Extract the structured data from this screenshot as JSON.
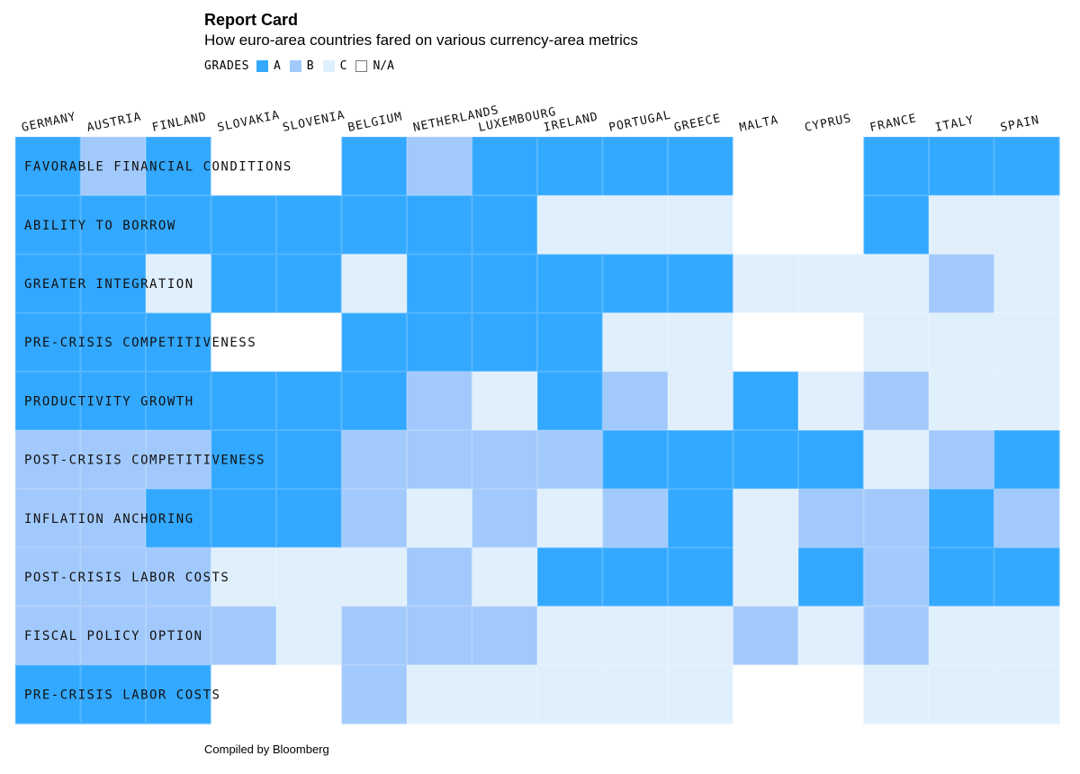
{
  "title": "Report Card",
  "subtitle": "How euro-area countries fared on various currency-area metrics",
  "legend": {
    "label": "GRADES",
    "items": [
      {
        "grade": "A",
        "label": "A",
        "color": "#33a8ff"
      },
      {
        "grade": "B",
        "label": "B",
        "color": "#a2c9fc"
      },
      {
        "grade": "C",
        "label": "C",
        "color": "#e0effc"
      },
      {
        "grade": "N/A",
        "label": "N/A",
        "color": "#ffffff"
      }
    ]
  },
  "source": "Compiled by Bloomberg",
  "chart_data": {
    "type": "heatmap",
    "title": "Report Card",
    "subtitle": "How euro-area countries fared on various currency-area metrics",
    "columns": [
      "GERMANY",
      "AUSTRIA",
      "FINLAND",
      "SLOVAKIA",
      "SLOVENIA",
      "BELGIUM",
      "NETHERLANDS",
      "LUXEMBOURG",
      "IRELAND",
      "PORTUGAL",
      "GREECE",
      "MALTA",
      "CYPRUS",
      "FRANCE",
      "ITALY",
      "SPAIN"
    ],
    "rows": [
      "FAVORABLE FINANCIAL CONDITIONS",
      "ABILITY TO BORROW",
      "GREATER INTEGRATION",
      "PRE-CRISIS COMPETITIVENESS",
      "PRODUCTIVITY GROWTH",
      "POST-CRISIS COMPETITIVENESS",
      "INFLATION ANCHORING",
      "POST-CRISIS LABOR COSTS",
      "FISCAL POLICY OPTION",
      "PRE-CRISIS LABOR COSTS"
    ],
    "grades": [
      [
        "A",
        "B",
        "A",
        "N/A",
        "N/A",
        "A",
        "B",
        "A",
        "A",
        "A",
        "A",
        "N/A",
        "N/A",
        "A",
        "A",
        "A"
      ],
      [
        "A",
        "A",
        "A",
        "A",
        "A",
        "A",
        "A",
        "A",
        "C",
        "C",
        "C",
        "N/A",
        "N/A",
        "A",
        "C",
        "C"
      ],
      [
        "A",
        "A",
        "C",
        "A",
        "A",
        "C",
        "A",
        "A",
        "A",
        "A",
        "A",
        "C",
        "C",
        "C",
        "B",
        "C"
      ],
      [
        "A",
        "A",
        "A",
        "N/A",
        "N/A",
        "A",
        "A",
        "A",
        "A",
        "C",
        "C",
        "N/A",
        "N/A",
        "C",
        "C",
        "C"
      ],
      [
        "A",
        "A",
        "A",
        "A",
        "A",
        "A",
        "B",
        "C",
        "A",
        "B",
        "C",
        "A",
        "C",
        "B",
        "C",
        "C"
      ],
      [
        "B",
        "B",
        "B",
        "A",
        "A",
        "B",
        "B",
        "B",
        "B",
        "A",
        "A",
        "A",
        "A",
        "C",
        "B",
        "A"
      ],
      [
        "B",
        "B",
        "A",
        "A",
        "A",
        "B",
        "C",
        "B",
        "C",
        "B",
        "A",
        "C",
        "B",
        "B",
        "A",
        "B"
      ],
      [
        "B",
        "B",
        "B",
        "C",
        "C",
        "C",
        "B",
        "C",
        "A",
        "A",
        "A",
        "C",
        "A",
        "B",
        "A",
        "A"
      ],
      [
        "B",
        "B",
        "B",
        "B",
        "C",
        "B",
        "B",
        "B",
        "C",
        "C",
        "C",
        "B",
        "C",
        "B",
        "C",
        "C"
      ],
      [
        "A",
        "A",
        "A",
        "N/A",
        "N/A",
        "B",
        "C",
        "C",
        "C",
        "C",
        "C",
        "N/A",
        "N/A",
        "C",
        "C",
        "C"
      ]
    ],
    "colors": {
      "A": "#33a8ff",
      "B": "#a2c9fc",
      "C": "#e0effc",
      "N/A": "#ffffff"
    }
  }
}
